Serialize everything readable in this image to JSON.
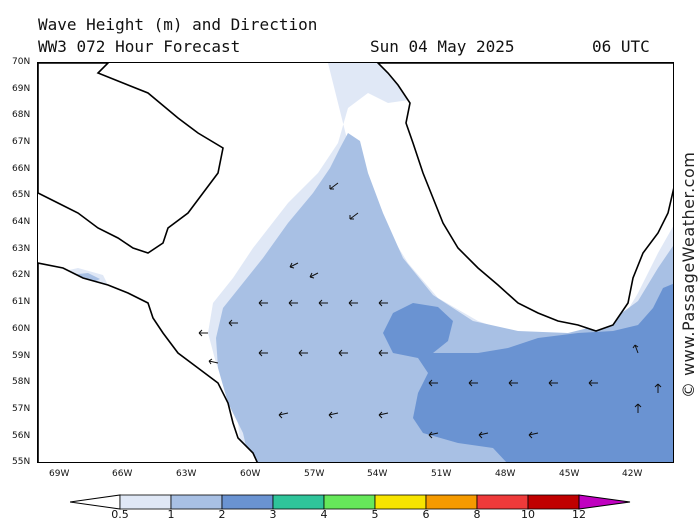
{
  "header": {
    "title": "Wave Height (m) and Direction",
    "model": "WW3 072 Hour Forecast",
    "date": "Sun 04 May 2025",
    "time": "06 UTC"
  },
  "credit": "© www.PassageWeather.com",
  "lat_labels": [
    "70N",
    "69N",
    "68N",
    "67N",
    "66N",
    "65N",
    "64N",
    "63N",
    "62N",
    "61N",
    "60N",
    "59N",
    "58N",
    "57N",
    "56N",
    "55N"
  ],
  "lon_labels": [
    "69W",
    "66W",
    "63W",
    "60W",
    "57W",
    "54W",
    "51W",
    "48W",
    "45W",
    "42W"
  ],
  "colorbar": {
    "labels": [
      "0.5",
      "1",
      "2",
      "3",
      "4",
      "5",
      "6",
      "8",
      "10",
      "12"
    ],
    "colors": [
      "#e0e8f6",
      "#a8c0e4",
      "#6a93d2",
      "#2fc49a",
      "#66e85a",
      "#f7e400",
      "#f59a00",
      "#ee3a3a",
      "#c00000",
      "#c000c0"
    ]
  },
  "shading": {
    "light": "#e0e8f6",
    "mid": "#a8c0e4",
    "dark": "#6a93d2"
  }
}
